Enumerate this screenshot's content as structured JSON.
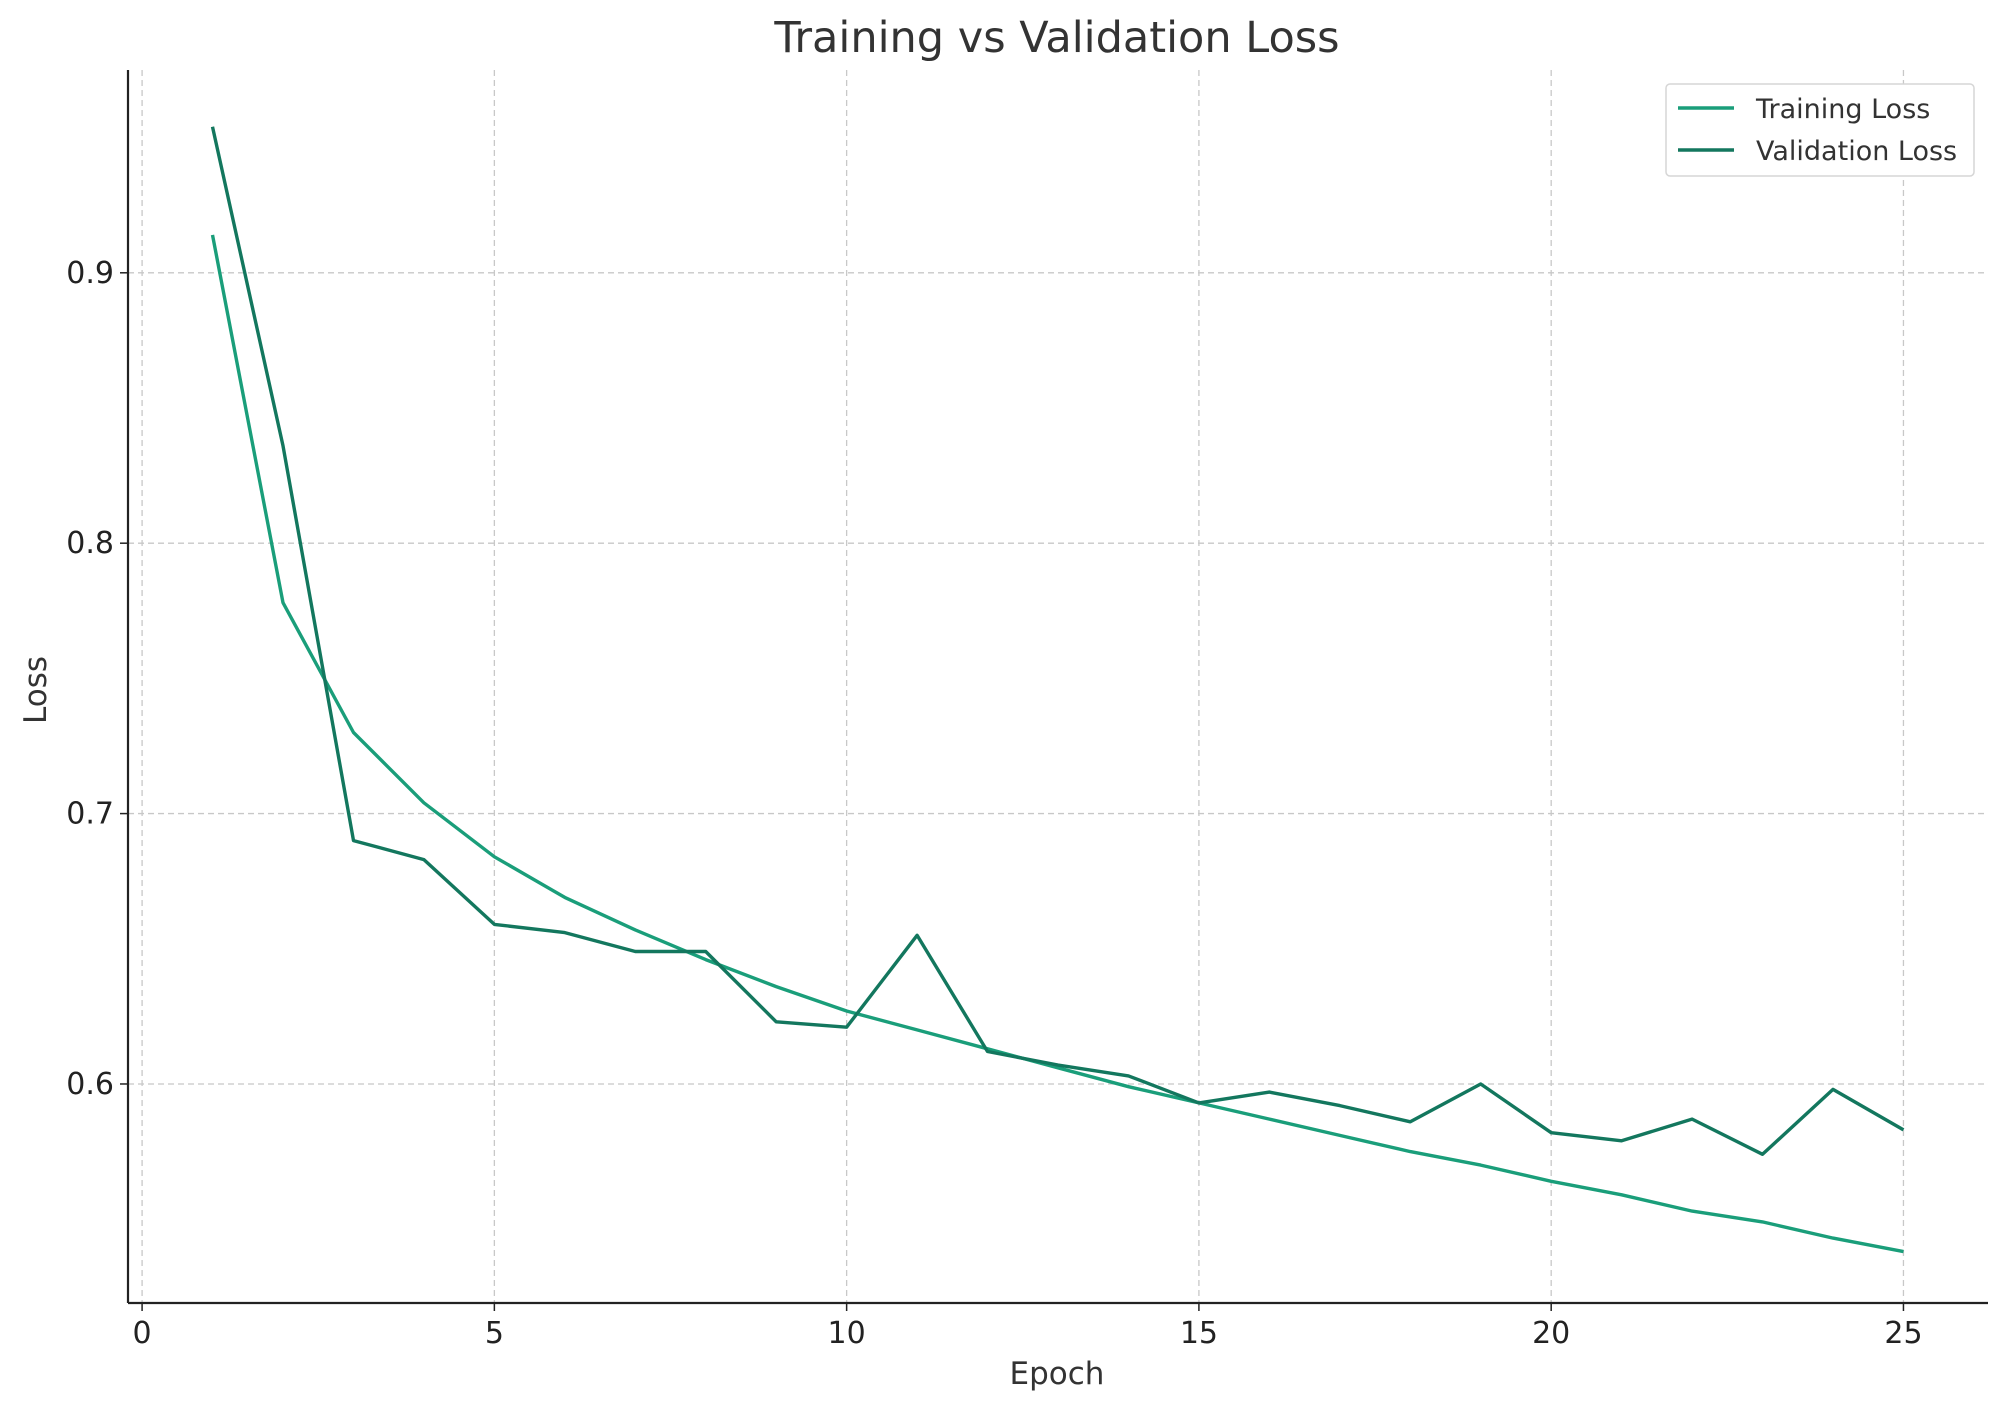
{
  "chart_data": {
    "type": "line",
    "title": "Training vs Validation Loss",
    "xlabel": "Epoch",
    "ylabel": "Loss",
    "xlim": [
      -0.2,
      26.2
    ],
    "ylim": [
      0.519,
      0.975
    ],
    "xticks": [
      0,
      5,
      10,
      15,
      20,
      25
    ],
    "xtick_labels": [
      "0",
      "5",
      "10",
      "15",
      "20",
      "25"
    ],
    "yticks": [
      0.6,
      0.7,
      0.8,
      0.9
    ],
    "ytick_labels": [
      "0.6",
      "0.7",
      "0.8",
      "0.9"
    ],
    "grid": true,
    "legend_position": "top-right",
    "x": [
      1,
      2,
      3,
      4,
      5,
      6,
      7,
      8,
      9,
      10,
      11,
      12,
      13,
      14,
      15,
      16,
      17,
      18,
      19,
      20,
      21,
      22,
      23,
      24,
      25
    ],
    "series": [
      {
        "name": "Training Loss",
        "color": "#1a9e7a",
        "values": [
          0.914,
          0.778,
          0.73,
          0.704,
          0.684,
          0.669,
          0.657,
          0.646,
          0.636,
          0.627,
          0.62,
          0.613,
          0.606,
          0.599,
          0.593,
          0.587,
          0.581,
          0.575,
          0.57,
          0.564,
          0.559,
          0.553,
          0.549,
          0.543,
          0.538
        ]
      },
      {
        "name": "Validation Loss",
        "color": "#13775e",
        "values": [
          0.954,
          0.836,
          0.69,
          0.683,
          0.659,
          0.656,
          0.649,
          0.649,
          0.623,
          0.621,
          0.655,
          0.612,
          0.607,
          0.603,
          0.593,
          0.597,
          0.592,
          0.586,
          0.6,
          0.582,
          0.579,
          0.587,
          0.574,
          0.598,
          0.583
        ]
      }
    ]
  }
}
